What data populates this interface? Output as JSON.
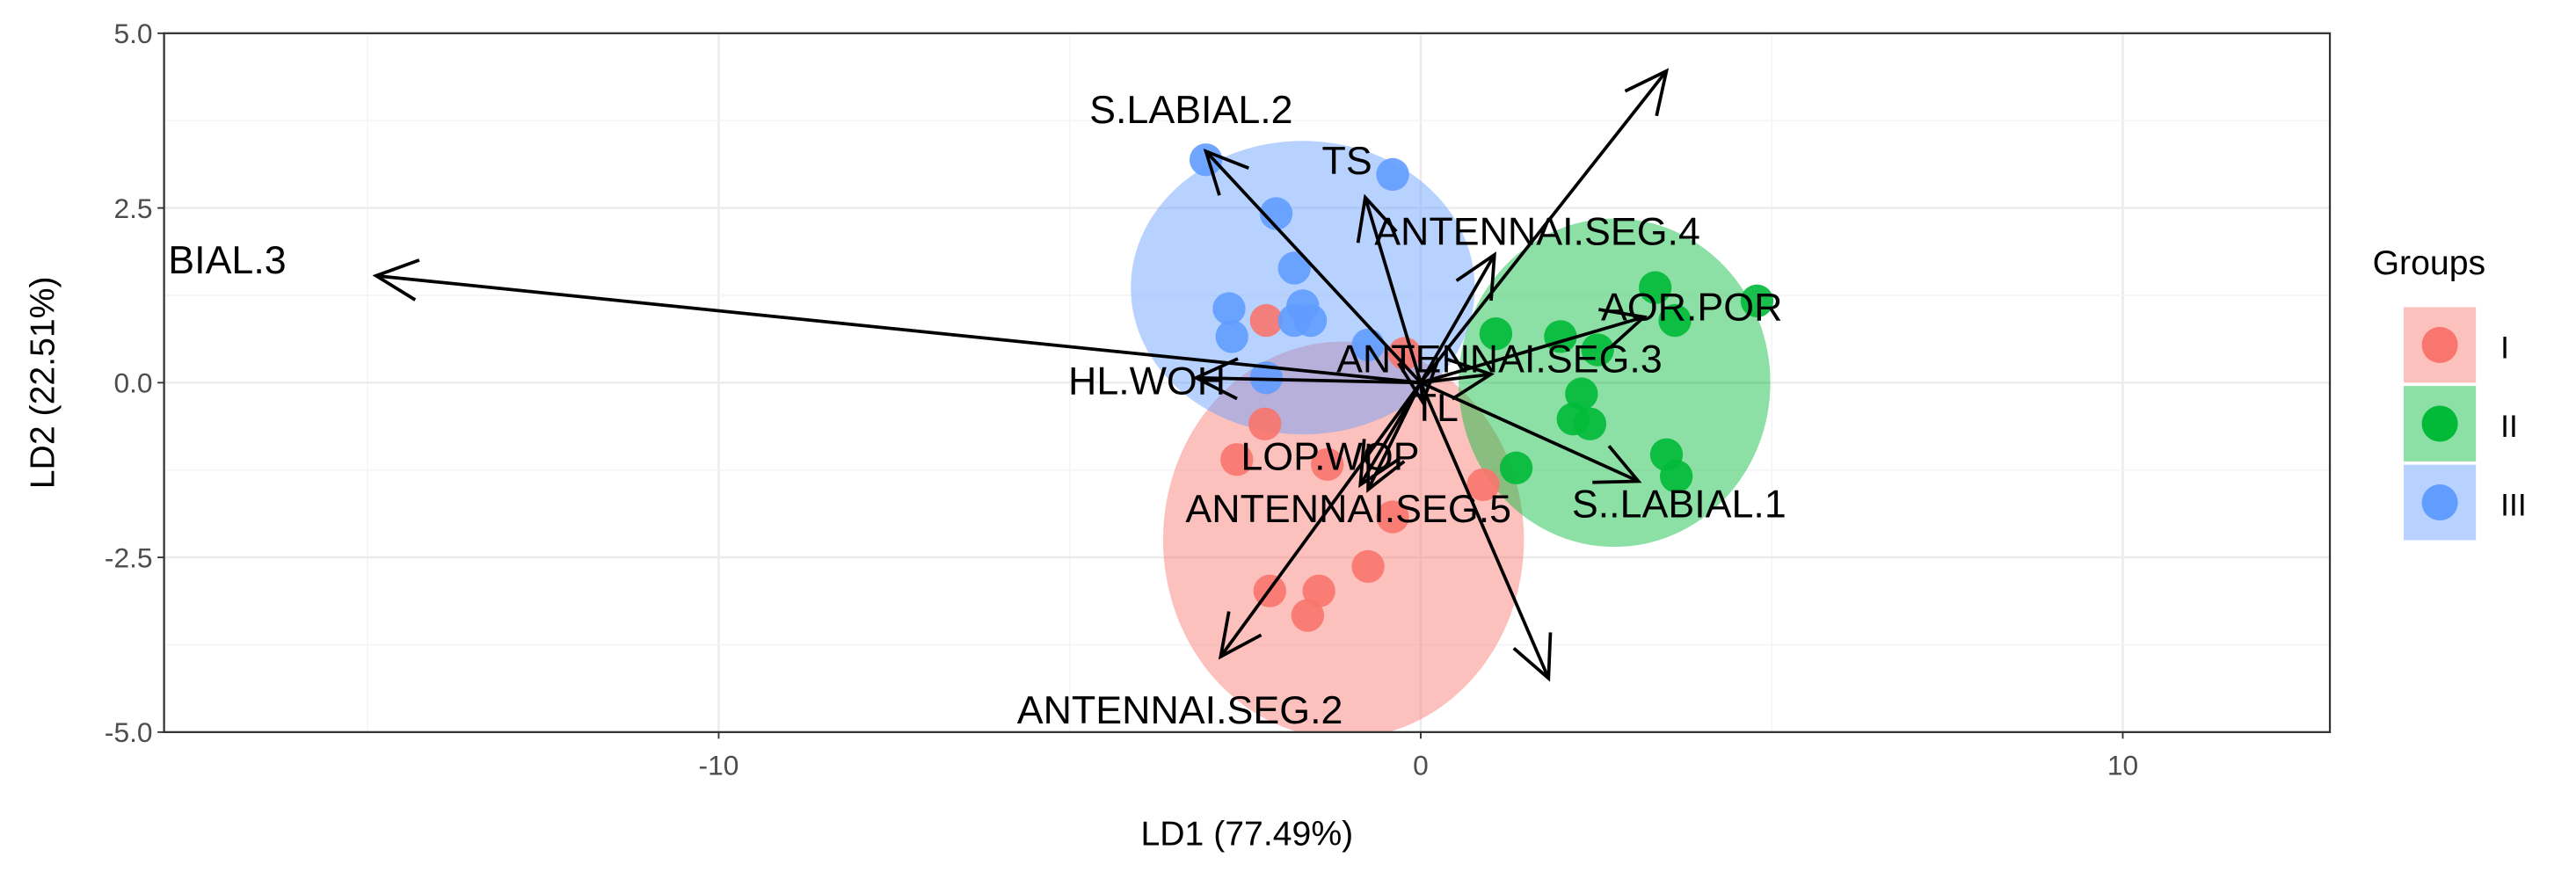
{
  "chart_data": {
    "type": "scatter",
    "subtype": "lda-biplot",
    "xlabel": "LD1 (77.49%)",
    "ylabel": "LD2 (22.51%)",
    "xlim": [
      -17.9,
      12.95
    ],
    "ylim": [
      -5.0,
      5.0
    ],
    "x_ticks": [
      -10,
      0,
      10
    ],
    "x_tick_labels": [
      "-10",
      "0",
      "10"
    ],
    "y_ticks": [
      -5,
      -2.5,
      0,
      2.5,
      5
    ],
    "y_tick_labels": [
      "-5.0",
      "-2.5",
      "0.0",
      "2.5",
      "5.0"
    ],
    "grid": true,
    "legend": {
      "title": "Groups",
      "placement": "right"
    },
    "series": [
      {
        "name": "I",
        "color": "#F8766D",
        "ellipse": {
          "cx": -1.1,
          "cy": -2.25,
          "rx": 2.57,
          "ry": 2.84
        },
        "points": [
          [
            -2.2,
            0.89
          ],
          [
            -0.23,
            0.42
          ],
          [
            -2.22,
            -0.59
          ],
          [
            -2.62,
            -1.1
          ],
          [
            -1.33,
            -1.17
          ],
          [
            -0.4,
            -1.92
          ],
          [
            -0.75,
            -2.63
          ],
          [
            -2.15,
            -2.98
          ],
          [
            -1.45,
            -2.98
          ],
          [
            -1.61,
            -3.33
          ],
          [
            0.89,
            -1.46
          ]
        ]
      },
      {
        "name": "II",
        "color": "#00BA38",
        "ellipse": {
          "cx": 2.76,
          "cy": 0.0,
          "rx": 2.22,
          "ry": 2.35
        },
        "points": [
          [
            3.34,
            1.36
          ],
          [
            4.79,
            1.17
          ],
          [
            1.07,
            0.7
          ],
          [
            1.99,
            0.66
          ],
          [
            2.52,
            0.47
          ],
          [
            3.62,
            0.89
          ],
          [
            2.29,
            -0.16
          ],
          [
            2.17,
            -0.52
          ],
          [
            2.41,
            -0.59
          ],
          [
            3.5,
            -1.03
          ],
          [
            3.64,
            -1.34
          ],
          [
            1.36,
            -1.22
          ]
        ]
      },
      {
        "name": "III",
        "color": "#619CFF",
        "ellipse": {
          "cx": -1.68,
          "cy": 1.36,
          "rx": 2.45,
          "ry": 2.1
        },
        "points": [
          [
            -3.06,
            3.19
          ],
          [
            -0.4,
            2.98
          ],
          [
            -2.06,
            2.42
          ],
          [
            -1.8,
            1.64
          ],
          [
            -2.73,
            1.06
          ],
          [
            -1.68,
            1.1
          ],
          [
            -1.8,
            0.89
          ],
          [
            -1.57,
            0.89
          ],
          [
            -2.69,
            0.66
          ],
          [
            -2.2,
            0.07
          ],
          [
            -0.75,
            0.54
          ]
        ]
      }
    ],
    "arrows": [
      {
        "label": "BIAL.3",
        "x": -14.88,
        "y": 1.53,
        "lx": -17.0,
        "ly": 1.75
      },
      {
        "label": "S.LABIAL.2",
        "x": -3.06,
        "y": 3.31,
        "lx": -3.27,
        "ly": 3.9
      },
      {
        "label": "TS",
        "x": -0.79,
        "y": 2.65,
        "lx": -1.05,
        "ly": 3.17
      },
      {
        "label": "ANTENNAI.SEG.4",
        "x": 1.05,
        "y": 1.83,
        "lx": 1.66,
        "ly": 2.16
      },
      {
        "label": "",
        "x": 3.5,
        "y": 4.46,
        "lx": 3.5,
        "ly": 4.46
      },
      {
        "label": "AOR.POR",
        "x": 3.18,
        "y": 0.94,
        "lx": 3.86,
        "ly": 1.08
      },
      {
        "label": "ANTENNAI.SEG.3",
        "x": 1.0,
        "y": 0.12,
        "lx": 1.12,
        "ly": 0.19
      },
      {
        "label": "HL.WOH",
        "x": -3.2,
        "y": 0.07,
        "lx": -3.9,
        "ly": 0.02
      },
      {
        "label": "TL",
        "x": 0.03,
        "y": -0.28,
        "lx": 0.21,
        "ly": -0.21
      },
      {
        "label": "LOP.WOP",
        "x": -0.86,
        "y": -1.46,
        "lx": -1.29,
        "ly": -1.06
      },
      {
        "label": "ANTENNAI.SEG.5",
        "x": -0.75,
        "y": -1.53,
        "lx": -1.03,
        "ly": -1.81
      },
      {
        "label": "S..LABIAL.1",
        "x": 3.1,
        "y": -1.41,
        "lx": 3.68,
        "ly": -1.74
      },
      {
        "label": "ANTENNAI.SEG.2",
        "x": -2.85,
        "y": -3.92,
        "lx": -3.43,
        "ly": -4.69
      },
      {
        "label": "",
        "x": 1.82,
        "y": -4.23,
        "lx": 1.82,
        "ly": -4.23
      }
    ]
  }
}
